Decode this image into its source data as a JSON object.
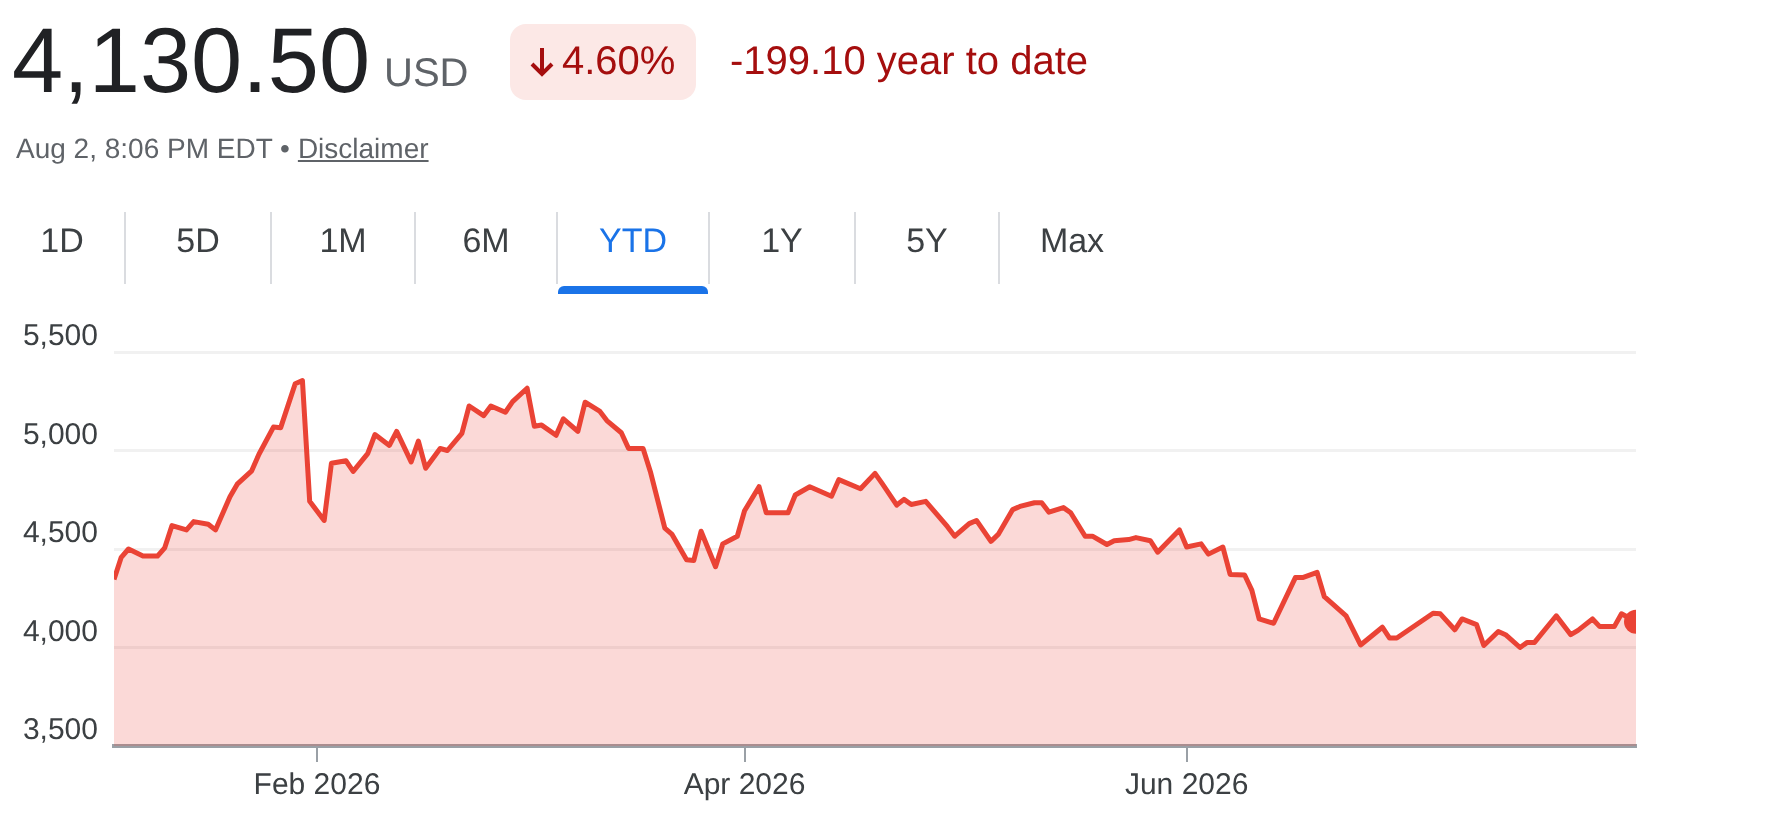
{
  "chart_data": {
    "type": "area",
    "title": "4,130.50",
    "annotations": [
      "USD",
      "4.60%",
      "-199.10 year to date",
      "Aug 2, 8:06 PM EDT •",
      "Disclaimer",
      "1D",
      "5D",
      "1M",
      "6M",
      "YTD",
      "1Y",
      "5Y",
      "Max"
    ],
    "x": [
      "2026-01-04",
      "2026-01-05",
      "2026-01-06",
      "2026-01-08",
      "2026-01-10",
      "2026-01-11",
      "2026-01-12",
      "2026-01-14",
      "2026-01-15",
      "2026-01-17",
      "2026-01-18",
      "2026-01-20",
      "2026-01-21",
      "2026-01-23",
      "2026-01-24",
      "2026-01-26",
      "2026-01-27",
      "2026-01-29",
      "2026-01-30",
      "2026-01-31",
      "2026-02-02",
      "2026-02-03",
      "2026-02-05",
      "2026-02-06",
      "2026-02-08",
      "2026-02-09",
      "2026-02-11",
      "2026-02-12",
      "2026-02-14",
      "2026-02-15",
      "2026-02-16",
      "2026-02-18",
      "2026-02-19",
      "2026-02-21",
      "2026-02-22",
      "2026-02-24",
      "2026-02-25",
      "2026-02-27",
      "2026-02-28",
      "2026-03-02",
      "2026-03-03",
      "2026-03-04",
      "2026-03-06",
      "2026-03-07",
      "2026-03-09",
      "2026-03-10",
      "2026-03-12",
      "2026-03-13",
      "2026-03-15",
      "2026-03-16",
      "2026-03-18",
      "2026-03-19",
      "2026-03-21",
      "2026-03-22",
      "2026-03-24",
      "2026-03-25",
      "2026-03-26",
      "2026-03-28",
      "2026-03-29",
      "2026-03-31",
      "2026-04-01",
      "2026-04-03",
      "2026-04-04",
      "2026-04-07",
      "2026-04-08",
      "2026-04-10",
      "2026-04-13",
      "2026-04-14",
      "2026-04-17",
      "2026-04-19",
      "2026-04-20",
      "2026-04-22",
      "2026-04-23",
      "2026-04-24",
      "2026-04-26",
      "2026-04-29",
      "2026-04-30",
      "2026-05-02",
      "2026-05-03",
      "2026-05-05",
      "2026-05-06",
      "2026-05-08",
      "2026-05-09",
      "2026-05-11",
      "2026-05-12",
      "2026-05-13",
      "2026-05-15",
      "2026-05-16",
      "2026-05-18",
      "2026-05-19",
      "2026-05-21",
      "2026-05-22",
      "2026-05-24",
      "2026-05-25",
      "2026-05-27",
      "2026-05-28",
      "2026-05-31",
      "2026-06-01",
      "2026-06-03",
      "2026-06-04",
      "2026-06-06",
      "2026-06-07",
      "2026-06-09",
      "2026-06-10",
      "2026-06-11",
      "2026-06-13",
      "2026-06-16",
      "2026-06-17",
      "2026-06-19",
      "2026-06-20",
      "2026-06-23",
      "2026-06-25",
      "2026-06-28",
      "2026-06-29",
      "2026-06-30",
      "2026-07-05",
      "2026-07-06",
      "2026-07-08",
      "2026-07-09",
      "2026-07-11",
      "2026-07-12",
      "2026-07-14",
      "2026-07-15",
      "2026-07-17",
      "2026-07-18",
      "2026-07-19",
      "2026-07-22",
      "2026-07-24",
      "2026-07-25",
      "2026-07-27",
      "2026-07-28",
      "2026-07-30",
      "2026-07-31",
      "2026-08-02"
    ],
    "values": [
      4345,
      4458,
      4500,
      4464,
      4464,
      4506,
      4619,
      4597,
      4639,
      4626,
      4597,
      4765,
      4829,
      4897,
      4981,
      5119,
      5116,
      5339,
      5355,
      4742,
      4645,
      4935,
      4948,
      4894,
      4984,
      5081,
      5026,
      5097,
      4942,
      5048,
      4910,
      5010,
      5000,
      5087,
      5226,
      5177,
      5226,
      5194,
      5248,
      5316,
      5123,
      5129,
      5077,
      5161,
      5097,
      5245,
      5200,
      5152,
      5090,
      5010,
      5010,
      4894,
      4606,
      4574,
      4445,
      4442,
      4590,
      4410,
      4526,
      4565,
      4694,
      4816,
      4684,
      4684,
      4774,
      4816,
      4768,
      4852,
      4806,
      4884,
      4832,
      4723,
      4752,
      4726,
      4742,
      4613,
      4565,
      4629,
      4645,
      4539,
      4574,
      4700,
      4716,
      4735,
      4735,
      4687,
      4710,
      4684,
      4565,
      4565,
      4523,
      4542,
      4548,
      4558,
      4542,
      4484,
      4597,
      4510,
      4526,
      4474,
      4510,
      4371,
      4368,
      4290,
      4145,
      4123,
      4355,
      4355,
      4381,
      4258,
      4161,
      4013,
      4103,
      4048,
      4048,
      4174,
      4171,
      4090,
      4145,
      4116,
      4010,
      4081,
      4065,
      4000,
      4026,
      4026,
      4161,
      4065,
      4087,
      4145,
      4106,
      4106,
      4171,
      4130.5
    ],
    "color": "#ea4335",
    "xlim": [
      "2026-01-04",
      "2026-08-02"
    ],
    "xticks": [
      {
        "value": "2026-02-01",
        "label": "Feb 2026"
      },
      {
        "value": "2026-04-01",
        "label": "Apr 2026"
      },
      {
        "value": "2026-06-01",
        "label": "Jun 2026"
      }
    ],
    "ylim": [
      3500,
      5500
    ],
    "yticks": [
      {
        "value": 3500,
        "label": "3,500"
      },
      {
        "value": 4000,
        "label": "4,000"
      },
      {
        "value": 4500,
        "label": "4,500"
      },
      {
        "value": 5000,
        "label": "5,000"
      },
      {
        "value": 5500,
        "label": "5,500"
      }
    ],
    "grid": "y",
    "legend": false
  }
}
